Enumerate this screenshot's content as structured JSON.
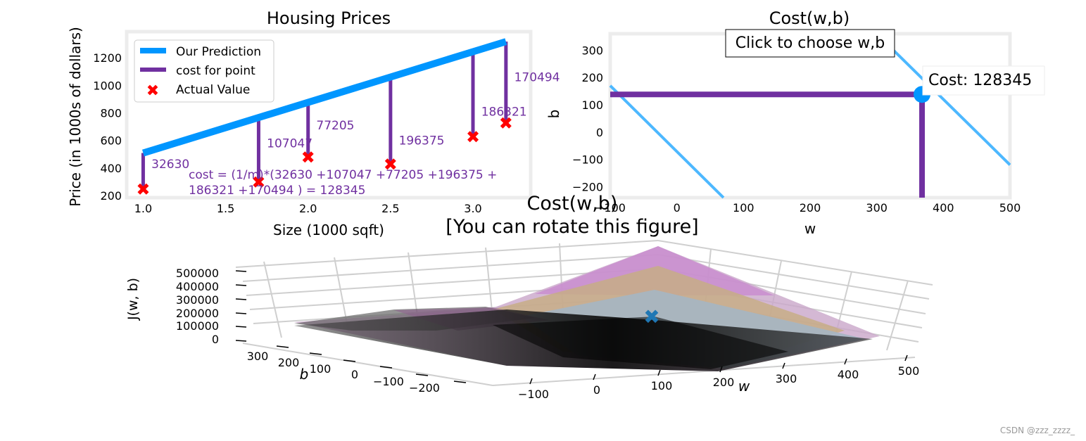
{
  "chart_data": [
    {
      "type": "line",
      "title": "Housing Prices",
      "xlabel": "Size (1000 sqft)",
      "ylabel": "Price (in 1000s of dollars)",
      "xlim": [
        0.9,
        3.35
      ],
      "ylim": [
        185,
        1390
      ],
      "xticks": [
        "1.0",
        "1.5",
        "2.0",
        "2.5",
        "3.0"
      ],
      "xtick_values": [
        1.0,
        1.5,
        2.0,
        2.5,
        3.0
      ],
      "yticks": [
        "200",
        "400",
        "600",
        "800",
        "1000",
        "1200"
      ],
      "ytick_values": [
        200,
        400,
        600,
        800,
        1000,
        1200
      ],
      "grid": false,
      "legend_position": "top-left",
      "legend": {
        "prediction": "Our Prediction",
        "cost": "cost for point",
        "actual": "Actual Value"
      },
      "prediction_line": {
        "x": [
          1.0,
          3.2
        ],
        "y": [
          509,
          1318
        ]
      },
      "actual_x": [
        1.0,
        1.7,
        2.0,
        2.5,
        3.0,
        3.2
      ],
      "actual_y": [
        250,
        300,
        480,
        430,
        630,
        730
      ],
      "cost_labels": [
        "32630",
        "107047",
        "77205",
        "196375",
        "186321",
        "170494"
      ],
      "cost_label_offsets_data": [
        [
          0.05,
          150
        ],
        [
          0.05,
          250
        ],
        [
          0.05,
          200
        ],
        [
          0.05,
          140
        ],
        [
          0.05,
          150
        ],
        [
          0.05,
          300
        ]
      ],
      "cost_text_line1": "cost = (1/m)*(32630 +107047 +77205 +196375 +",
      "cost_text_line2": "186321 +170494 ) = 128345",
      "colors": {
        "prediction": "#0096ff",
        "cost": "#7030a0",
        "actual": "#ff0000"
      }
    },
    {
      "type": "contour",
      "title": "Cost(w,b)",
      "xlabel": "w",
      "ylabel": "b",
      "xlim": [
        -100,
        500
      ],
      "ylim": [
        -240,
        360
      ],
      "xticks": [
        "−100",
        "0",
        "100",
        "200",
        "300",
        "400",
        "500"
      ],
      "xtick_values": [
        -100,
        0,
        100,
        200,
        300,
        400,
        500
      ],
      "yticks": [
        "−200",
        "−100",
        "0",
        "100",
        "200",
        "300"
      ],
      "ytick_values": [
        -200,
        -100,
        0,
        100,
        200,
        300
      ],
      "click_box": "Click to choose w,b",
      "cost_box": "Cost: 128345",
      "selected_w": 368,
      "selected_b": 138,
      "contour_lines": [
        {
          "w": [
            -100,
            70
          ],
          "b": [
            170,
            -240
          ]
        },
        {
          "w": [
            300,
            500
          ],
          "b": [
            360,
            -120
          ]
        }
      ],
      "colors": {
        "contour": "#4db8ff",
        "marker": "#0096ff",
        "guide": "#7030a0"
      }
    },
    {
      "type": "surface3d",
      "title_line1": "Cost(w,b)",
      "title_line2": "[You can rotate this figure]",
      "xlabel": "w",
      "ylabel": "b",
      "zlabel": "J(w, b)",
      "w_ticks": [
        "−100",
        "0",
        "100",
        "200",
        "300",
        "400",
        "500"
      ],
      "b_ticks": [
        "300",
        "200",
        "100",
        "0",
        "−100",
        "−200"
      ],
      "z_ticks": [
        "500000",
        "400000",
        "300000",
        "200000",
        "100000",
        "0"
      ],
      "marker": "✖",
      "marker_color": "#1f77b4"
    }
  ],
  "watermark": "CSDN @zzz_zzzz_"
}
